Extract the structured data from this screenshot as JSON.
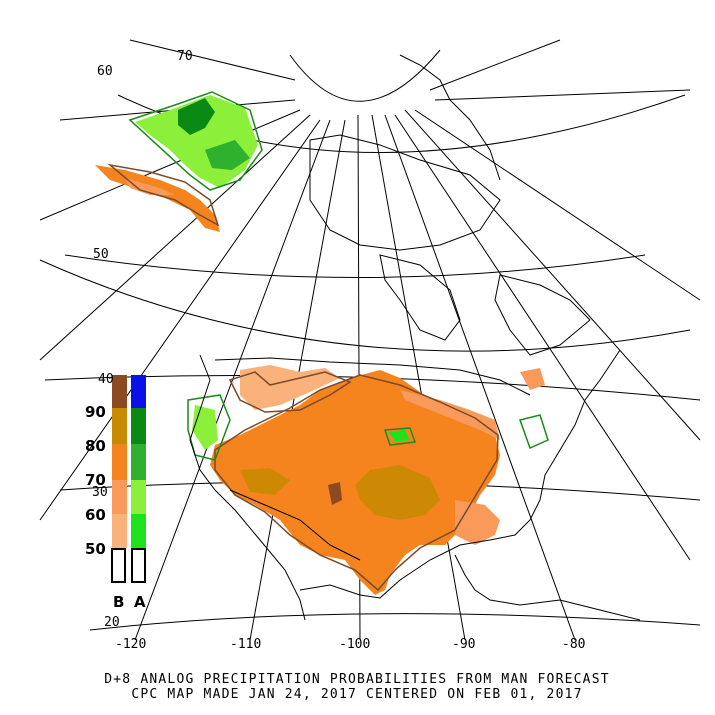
{
  "map": {
    "lat_labels": [
      "60",
      "70",
      "50",
      "40",
      "30",
      "20"
    ],
    "lon_labels": [
      "-120",
      "-110",
      "-100",
      "-90",
      "-80"
    ]
  },
  "legend": {
    "below_label": "B",
    "above_label": "A",
    "levels": [
      "90",
      "80",
      "70",
      "60",
      "50"
    ],
    "below_colors": [
      "#8b4a22",
      "#c78a00",
      "#f5841f",
      "#f99a5a",
      "#fbb27a"
    ],
    "above_colors": [
      "#0a10e6",
      "#0a8a14",
      "#2fb02f",
      "#8cf03a",
      "#1fe21f"
    ]
  },
  "caption": {
    "line1": "D+8 ANALOG PRECIPITATION PROBABILITIES FROM MAN FORECAST",
    "line2": "CPC MAP MADE JAN 24, 2017 CENTERED ON FEB 01, 2017"
  },
  "colors": {
    "below_contour": "#7a4a2a",
    "above_contour": "#1a8a1a"
  }
}
